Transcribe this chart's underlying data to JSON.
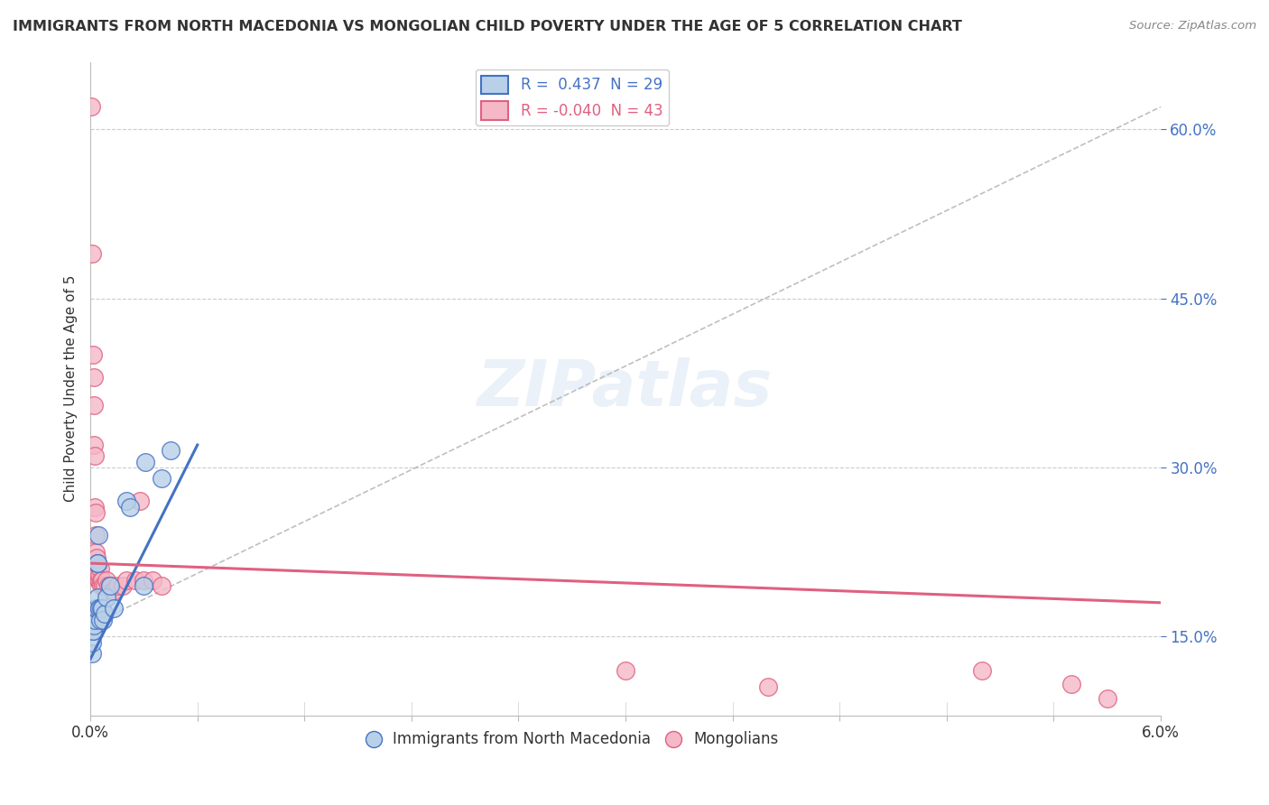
{
  "title": "IMMIGRANTS FROM NORTH MACEDONIA VS MONGOLIAN CHILD POVERTY UNDER THE AGE OF 5 CORRELATION CHART",
  "source": "Source: ZipAtlas.com",
  "ylabel": "Child Poverty Under the Age of 5",
  "ylim": [
    0.08,
    0.66
  ],
  "xlim": [
    0.0,
    0.06
  ],
  "shown_yticks": [
    0.15,
    0.3,
    0.45,
    0.6
  ],
  "shown_ytick_labels": [
    "15.0%",
    "30.0%",
    "45.0%",
    "60.0%"
  ],
  "blue_color": "#b8d0e8",
  "pink_color": "#f4b8c8",
  "blue_line_color": "#4472c4",
  "pink_line_color": "#e06080",
  "blue_scatter": [
    [
      8e-05,
      0.135
    ],
    [
      0.0001,
      0.145
    ],
    [
      0.00012,
      0.155
    ],
    [
      0.00015,
      0.155
    ],
    [
      0.00018,
      0.16
    ],
    [
      0.0002,
      0.17
    ],
    [
      0.00025,
      0.165
    ],
    [
      0.0003,
      0.175
    ],
    [
      0.00035,
      0.175
    ],
    [
      0.00038,
      0.215
    ],
    [
      0.0004,
      0.185
    ],
    [
      0.00042,
      0.215
    ],
    [
      0.00045,
      0.24
    ],
    [
      0.00048,
      0.175
    ],
    [
      0.0005,
      0.175
    ],
    [
      0.00055,
      0.165
    ],
    [
      0.0006,
      0.175
    ],
    [
      0.00065,
      0.175
    ],
    [
      0.0007,
      0.165
    ],
    [
      0.0008,
      0.17
    ],
    [
      0.0009,
      0.185
    ],
    [
      0.0011,
      0.195
    ],
    [
      0.0013,
      0.175
    ],
    [
      0.002,
      0.27
    ],
    [
      0.0022,
      0.265
    ],
    [
      0.003,
      0.195
    ],
    [
      0.0031,
      0.305
    ],
    [
      0.004,
      0.29
    ],
    [
      0.0045,
      0.315
    ]
  ],
  "pink_scatter": [
    [
      5e-05,
      0.62
    ],
    [
      0.0001,
      0.49
    ],
    [
      0.00015,
      0.4
    ],
    [
      0.00018,
      0.38
    ],
    [
      0.0002,
      0.355
    ],
    [
      0.00022,
      0.32
    ],
    [
      0.00025,
      0.31
    ],
    [
      0.00027,
      0.265
    ],
    [
      0.00028,
      0.26
    ],
    [
      0.0003,
      0.24
    ],
    [
      0.00032,
      0.225
    ],
    [
      0.00035,
      0.22
    ],
    [
      0.00038,
      0.21
    ],
    [
      0.0004,
      0.205
    ],
    [
      0.00042,
      0.205
    ],
    [
      0.00045,
      0.2
    ],
    [
      0.00048,
      0.2
    ],
    [
      0.0005,
      0.2
    ],
    [
      0.00052,
      0.205
    ],
    [
      0.00055,
      0.21
    ],
    [
      0.00058,
      0.2
    ],
    [
      0.0006,
      0.195
    ],
    [
      0.00065,
      0.2
    ],
    [
      0.0007,
      0.195
    ],
    [
      0.0008,
      0.195
    ],
    [
      0.0009,
      0.2
    ],
    [
      0.001,
      0.195
    ],
    [
      0.0011,
      0.195
    ],
    [
      0.0012,
      0.19
    ],
    [
      0.0013,
      0.19
    ],
    [
      0.0015,
      0.195
    ],
    [
      0.0018,
      0.195
    ],
    [
      0.002,
      0.2
    ],
    [
      0.0025,
      0.2
    ],
    [
      0.0028,
      0.27
    ],
    [
      0.003,
      0.2
    ],
    [
      0.0035,
      0.2
    ],
    [
      0.004,
      0.195
    ],
    [
      0.03,
      0.12
    ],
    [
      0.038,
      0.105
    ],
    [
      0.05,
      0.12
    ],
    [
      0.055,
      0.108
    ],
    [
      0.057,
      0.095
    ]
  ],
  "blue_line": [
    [
      0.0,
      0.13
    ],
    [
      0.006,
      0.32
    ]
  ],
  "pink_line": [
    [
      0.0,
      0.215
    ],
    [
      0.06,
      0.18
    ]
  ],
  "dash_line": [
    [
      0.0,
      0.16
    ],
    [
      0.06,
      0.62
    ]
  ],
  "watermark": "ZIPatlas",
  "legend_x": "Immigrants from North Macedonia",
  "legend_pink": "Mongolians",
  "xtick_positions": [
    0.0,
    0.006,
    0.012,
    0.018,
    0.024,
    0.03,
    0.036,
    0.042,
    0.048,
    0.054,
    0.06
  ],
  "xtick_labels": [
    "0.0%",
    "",
    "",
    "",
    "",
    "",
    "",
    "",
    "",
    "",
    "6.0%"
  ]
}
